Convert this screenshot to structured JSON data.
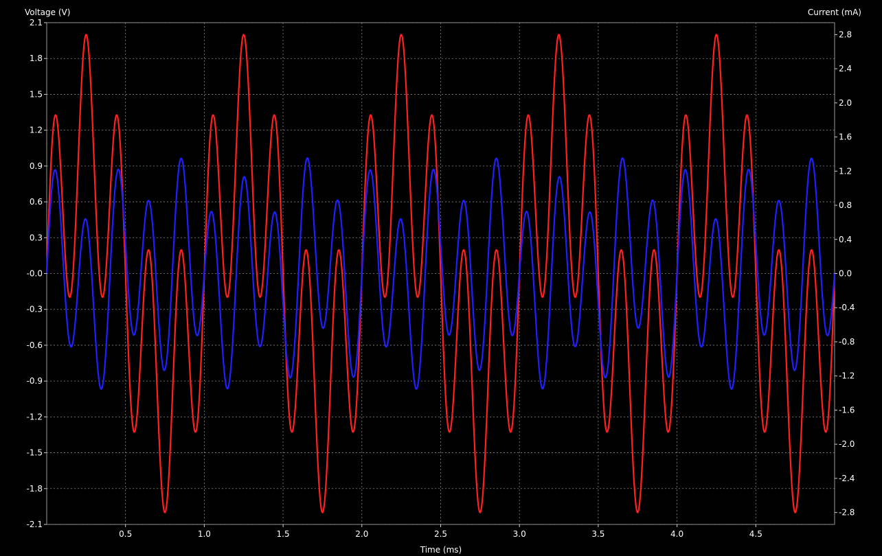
{
  "chart_data": {
    "type": "line",
    "xlabel": "Time (ms)",
    "ylabel_left": "Voltage (V)",
    "ylabel_right": "Current (mA)",
    "xlim": [
      0,
      5
    ],
    "ylim_left": [
      -2.1,
      2.1
    ],
    "ylim_right": [
      -2.94,
      2.94
    ],
    "x_ticks": [
      0.5,
      1.0,
      1.5,
      2.0,
      2.5,
      3.0,
      3.5,
      4.0,
      4.5
    ],
    "x_tick_labels": [
      "0.5",
      "1.0",
      "1.5",
      "2.0",
      "2.5",
      "3.0",
      "3.5",
      "4.0",
      "4.5"
    ],
    "y_left_ticks": [
      2.1,
      1.8,
      1.5,
      1.2,
      0.9,
      0.6,
      0.3,
      0.0,
      -0.3,
      -0.6,
      -0.9,
      -1.2,
      -1.5,
      -1.8,
      -2.1
    ],
    "y_left_tick_labels": [
      "2.1",
      "1.8",
      "1.5",
      "1.2",
      "0.9",
      "0.6",
      "0.3",
      "-0.0",
      "-0.3",
      "-0.6",
      "-0.9",
      "-1.2",
      "-1.5",
      "-1.8",
      "-2.1"
    ],
    "y_right_ticks": [
      2.8,
      2.4,
      2.0,
      1.6,
      1.2,
      0.8,
      0.4,
      0.0,
      -0.4,
      -0.8,
      -1.2,
      -1.6,
      -2.0,
      -2.4,
      -2.8
    ],
    "y_right_tick_labels": [
      "2.8",
      "2.4",
      "2.0",
      "1.6",
      "1.2",
      "0.8",
      "0.4",
      "0.0",
      "-0.4",
      "-0.8",
      "-1.2",
      "-1.6",
      "-2.0",
      "-2.4",
      "-2.8"
    ],
    "grid": true,
    "background": "#000000",
    "series": [
      {
        "axis": "left",
        "color": "#ff2020",
        "formula": "V(t) = 1.0*sin(2*pi*t/1.0) + 1.0*sin(2*pi*t/0.2), t in ms",
        "components": [
          {
            "amplitude": 1.0,
            "period_ms": 1.0
          },
          {
            "amplitude": 1.0,
            "period_ms": 0.2
          }
        ],
        "peak_values": [
          2.0,
          -2.0
        ]
      },
      {
        "axis": "right",
        "color": "#2020ff",
        "formula": "I(t) = 1.0*sin(2*pi*t/0.2) + 0.35*sin(2*pi*t/0.4) - 0.12*sin(2*pi*t/1.0), t in mA",
        "components": [
          {
            "amplitude": 1.0,
            "period_ms": 0.2
          },
          {
            "amplitude": 0.35,
            "period_ms": 0.4
          },
          {
            "amplitude": -0.12,
            "period_ms": 1.0
          }
        ],
        "peak_values": [
          1.33,
          -1.33
        ]
      }
    ]
  }
}
